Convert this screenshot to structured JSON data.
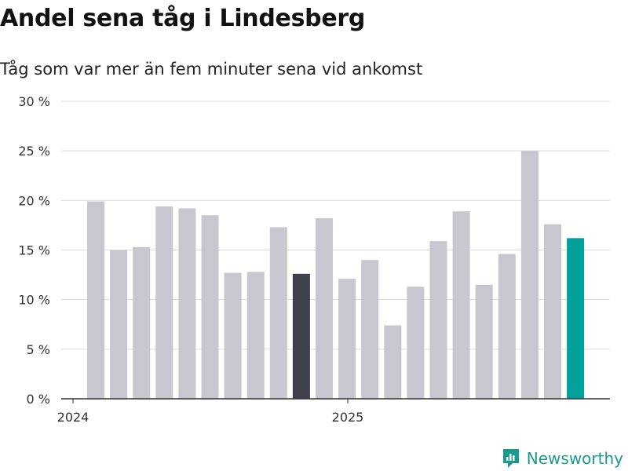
{
  "header": {
    "title": "Andel sena tåg i Lindesberg",
    "subtitle": "Tåg som var mer än fem minuter sena vid ankomst"
  },
  "brand": {
    "name": "Newsworthy",
    "icon": "newsworthy-logo-icon",
    "color": "#1a9a8e"
  },
  "colors": {
    "default_bar": "#c8c7d0",
    "highlight_dark": "#403f4c",
    "highlight_latest": "#00a19a",
    "grid": "#dddddd",
    "axis": "#333333"
  },
  "chart_data": {
    "type": "bar",
    "title": "Andel sena tåg i Lindesberg",
    "subtitle": "Tåg som var mer än fem minuter sena vid ankomst",
    "xlabel": "",
    "ylabel": "",
    "ylim": [
      0,
      30
    ],
    "yticks": [
      0,
      5,
      10,
      15,
      20,
      25,
      30
    ],
    "ytick_labels": [
      "0 %",
      "5 %",
      "10 %",
      "15 %",
      "20 %",
      "25 %",
      "30 %"
    ],
    "x_tick_labels": [
      {
        "label": "2024",
        "month_index": 0
      },
      {
        "label": "2025",
        "month_index": 12
      }
    ],
    "categories": [
      "2024-01",
      "2024-02",
      "2024-03",
      "2024-04",
      "2024-05",
      "2024-06",
      "2024-07",
      "2024-08",
      "2024-09",
      "2024-10",
      "2024-11",
      "2024-12",
      "2025-01",
      "2025-02",
      "2025-03",
      "2025-04",
      "2025-05",
      "2025-06",
      "2025-07",
      "2025-08",
      "2025-09",
      "2025-10"
    ],
    "values": [
      19.9,
      15.0,
      15.3,
      19.4,
      19.2,
      18.5,
      12.7,
      12.8,
      17.3,
      12.6,
      18.2,
      12.1,
      14.0,
      7.4,
      11.3,
      15.9,
      18.9,
      11.5,
      14.6,
      25.0,
      17.6,
      16.2
    ],
    "highlight": {
      "2024-10": "dark",
      "2025-10": "latest"
    },
    "grid": true
  }
}
